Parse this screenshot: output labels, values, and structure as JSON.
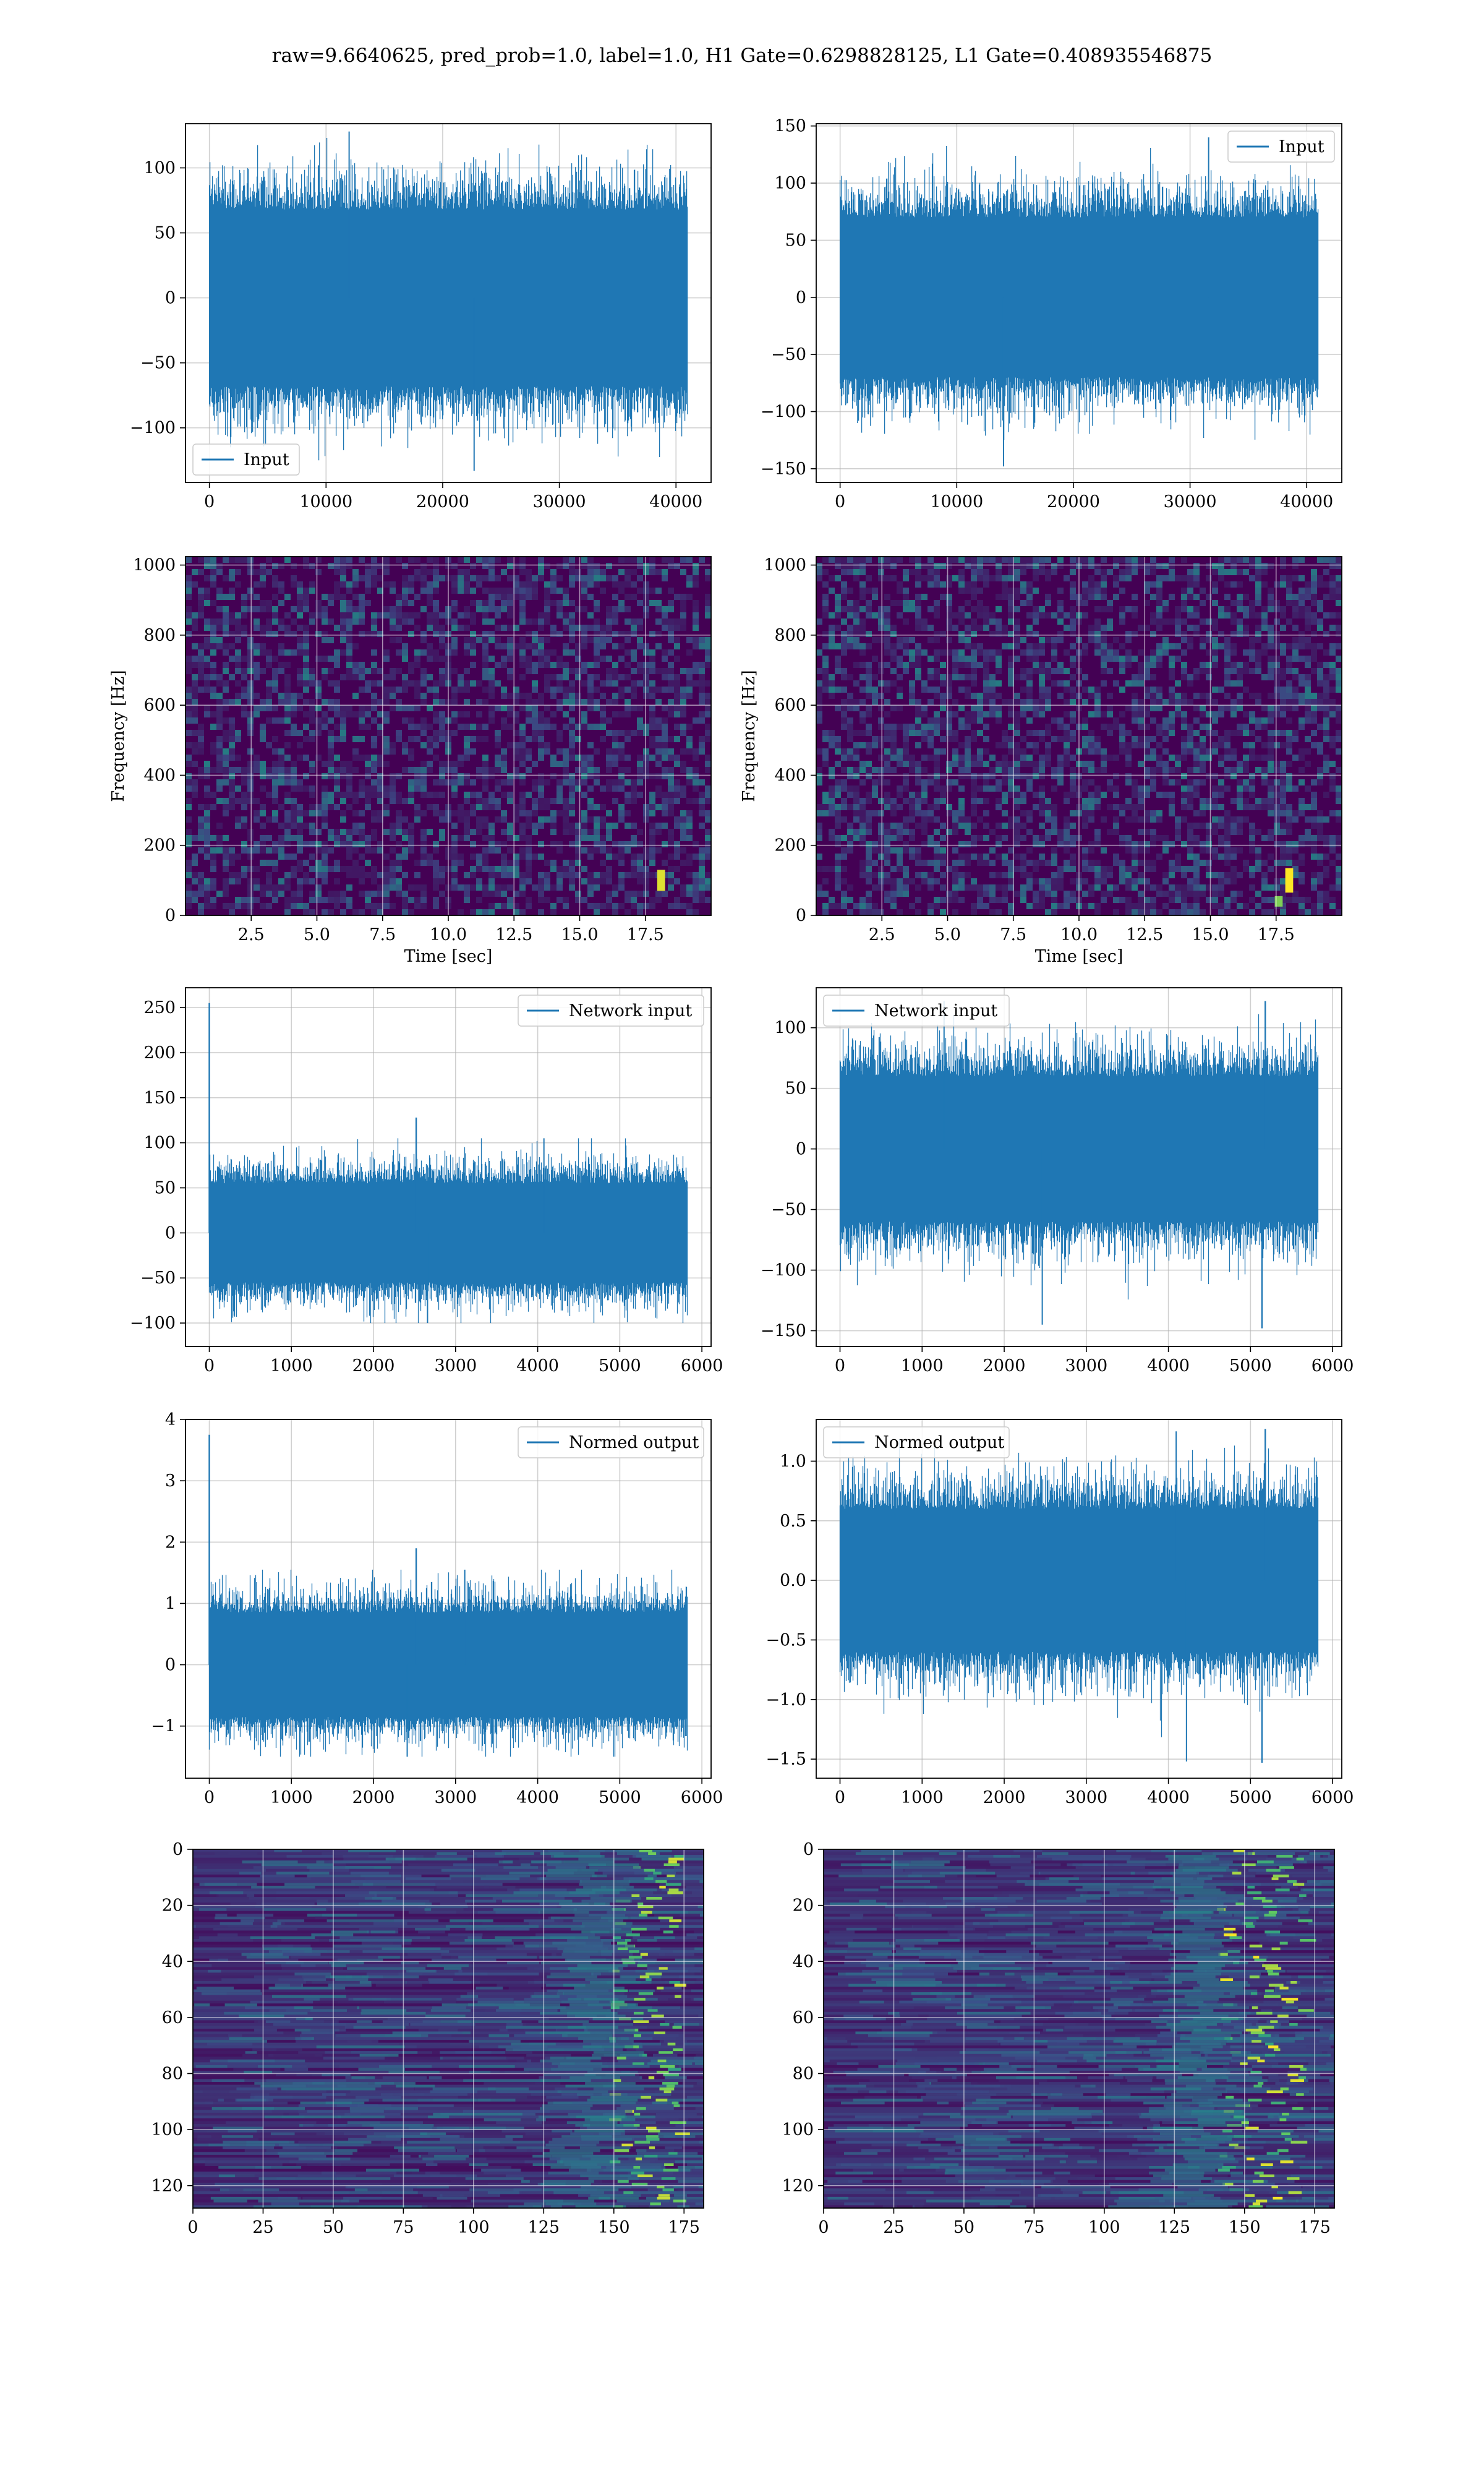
{
  "figure": {
    "title": "raw=9.6640625, pred_prob=1.0, label=1.0, H1 Gate=0.6298828125, L1 Gate=0.408935546875"
  },
  "colors": {
    "line": "#1f77b4",
    "viridis_low": "#440154",
    "viridis_mid": "#21918c",
    "viridis_high": "#fde725",
    "grid": "#b0b0b0"
  },
  "chart_data": [
    {
      "id": "h1-input",
      "type": "line",
      "seed": 11,
      "x_range": [
        0,
        40960
      ],
      "xlim": [
        -2048,
        43008
      ],
      "ylim": [
        -142,
        134
      ],
      "xticks": [
        0,
        10000,
        20000,
        30000,
        40000
      ],
      "yticks": [
        -100,
        -50,
        0,
        50,
        100
      ],
      "series": [
        {
          "name": "Input",
          "amplitude": 30,
          "band": 68,
          "peak_max": 128,
          "peak_min": -133,
          "spikes": []
        }
      ],
      "legend": "lower-left",
      "grid": true
    },
    {
      "id": "l1-input",
      "type": "line",
      "seed": 23,
      "x_range": [
        0,
        40960
      ],
      "xlim": [
        -2048,
        43008
      ],
      "ylim": [
        -162,
        152
      ],
      "xticks": [
        0,
        10000,
        20000,
        30000,
        40000
      ],
      "yticks": [
        -150,
        -100,
        -50,
        0,
        50,
        100,
        150
      ],
      "series": [
        {
          "name": "Input",
          "amplitude": 30,
          "band": 70,
          "peak_max": 140,
          "peak_min": -148,
          "spikes": []
        }
      ],
      "legend": "upper-right",
      "grid": true
    },
    {
      "id": "h1-spectrogram",
      "type": "heatmap",
      "seed": 5,
      "xlim": [
        0,
        20
      ],
      "ylim": [
        0,
        1024
      ],
      "xticks": [
        2.5,
        5.0,
        7.5,
        10.0,
        12.5,
        15.0,
        17.5
      ],
      "yticks": [
        0,
        200,
        400,
        600,
        800,
        1000
      ],
      "xlabel": "Time [sec]",
      "ylabel": "Frequency [Hz]",
      "hot": [
        {
          "x": 18.1,
          "y": 100,
          "w": 0.3,
          "h": 60,
          "level": 0.95
        }
      ],
      "grid": true
    },
    {
      "id": "l1-spectrogram",
      "type": "heatmap",
      "seed": 9,
      "xlim": [
        0,
        20
      ],
      "ylim": [
        0,
        1024
      ],
      "xticks": [
        2.5,
        5.0,
        7.5,
        10.0,
        12.5,
        15.0,
        17.5
      ],
      "yticks": [
        0,
        200,
        400,
        600,
        800,
        1000
      ],
      "xlabel": "Time [sec]",
      "ylabel": "Frequency [Hz]",
      "hot": [
        {
          "x": 18.0,
          "y": 100,
          "w": 0.3,
          "h": 70,
          "level": 1.0
        },
        {
          "x": 17.6,
          "y": 40,
          "w": 0.3,
          "h": 30,
          "level": 0.8
        }
      ],
      "grid": true
    },
    {
      "id": "h1-network-input",
      "type": "line",
      "seed": 31,
      "x_range": [
        0,
        5824
      ],
      "xlim": [
        -290,
        6112
      ],
      "ylim": [
        -126,
        272
      ],
      "xticks": [
        0,
        1000,
        2000,
        3000,
        4000,
        5000,
        6000
      ],
      "yticks": [
        -100,
        -50,
        0,
        50,
        100,
        150,
        200,
        250
      ],
      "series": [
        {
          "name": "Network input",
          "amplitude": 28,
          "band": 55,
          "peak_max": 105,
          "peak_min": -100,
          "spikes": [
            {
              "x": 0,
              "y": 255
            },
            {
              "x": 2520,
              "y": 128
            }
          ]
        }
      ],
      "legend": "upper-right",
      "grid": true
    },
    {
      "id": "l1-network-input",
      "type": "line",
      "seed": 47,
      "x_range": [
        0,
        5824
      ],
      "xlim": [
        -290,
        6112
      ],
      "ylim": [
        -163,
        133
      ],
      "xticks": [
        0,
        1000,
        2000,
        3000,
        4000,
        5000,
        6000
      ],
      "yticks": [
        -150,
        -100,
        -50,
        0,
        50,
        100
      ],
      "series": [
        {
          "name": "Network input",
          "amplitude": 30,
          "band": 60,
          "peak_max": 122,
          "peak_min": -145,
          "spikes": [
            {
              "x": 5180,
              "y": 122
            },
            {
              "x": 5140,
              "y": -148
            }
          ]
        }
      ],
      "legend": "upper-left",
      "grid": true
    },
    {
      "id": "h1-normed-output",
      "type": "line",
      "seed": 53,
      "x_range": [
        0,
        5824
      ],
      "xlim": [
        -290,
        6112
      ],
      "ylim": [
        -1.85,
        4.0
      ],
      "xticks": [
        0,
        1000,
        2000,
        3000,
        4000,
        5000,
        6000
      ],
      "yticks": [
        -1,
        0,
        1,
        2,
        3,
        4
      ],
      "series": [
        {
          "name": "Normed output",
          "amplitude": 0.42,
          "band": 0.85,
          "peak_max": 1.55,
          "peak_min": -1.5,
          "spikes": [
            {
              "x": 0,
              "y": 3.75
            },
            {
              "x": 2520,
              "y": 1.9
            }
          ]
        }
      ],
      "legend": "upper-right",
      "grid": true
    },
    {
      "id": "l1-normed-output",
      "type": "line",
      "seed": 67,
      "x_range": [
        0,
        5824
      ],
      "xlim": [
        -290,
        6112
      ],
      "ylim": [
        -1.66,
        1.35
      ],
      "xticks": [
        0,
        1000,
        2000,
        3000,
        4000,
        5000,
        6000
      ],
      "yticks": [
        -1.5,
        -1.0,
        -0.5,
        0.0,
        0.5,
        1.0
      ],
      "series": [
        {
          "name": "Normed output",
          "amplitude": 0.3,
          "band": 0.6,
          "peak_max": 1.25,
          "peak_min": -1.52,
          "spikes": [
            {
              "x": 5180,
              "y": 1.27
            },
            {
              "x": 5140,
              "y": -1.53
            }
          ]
        }
      ],
      "legend": "upper-left",
      "grid": true
    },
    {
      "id": "h1-feature-map",
      "type": "heatmap",
      "seed": 71,
      "xlim": [
        0,
        182
      ],
      "ylim": [
        128,
        0
      ],
      "xticks": [
        0,
        25,
        50,
        75,
        100,
        125,
        150,
        175
      ],
      "yticks": [
        0,
        20,
        40,
        60,
        80,
        100,
        120
      ],
      "ridge": {
        "x_start": 148,
        "x_end": 172,
        "level": 0.9
      },
      "grid": true
    },
    {
      "id": "l1-feature-map",
      "type": "heatmap",
      "seed": 83,
      "xlim": [
        0,
        182
      ],
      "ylim": [
        128,
        0
      ],
      "xticks": [
        0,
        25,
        50,
        75,
        100,
        125,
        150,
        175
      ],
      "yticks": [
        0,
        20,
        40,
        60,
        80,
        100,
        120
      ],
      "ridge": {
        "x_start": 140,
        "x_end": 170,
        "level": 0.95
      },
      "grid": true
    }
  ]
}
